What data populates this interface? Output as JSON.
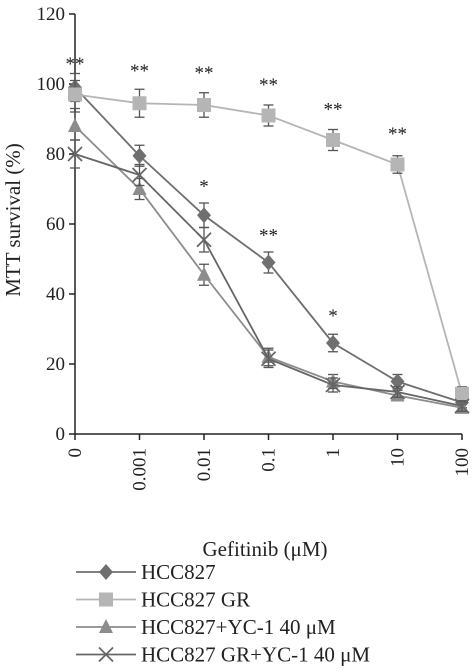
{
  "chart_data": {
    "type": "line",
    "title": "",
    "xlabel": "Gefitinib (μM)",
    "ylabel": "MTT survival (%)",
    "categories": [
      "0",
      "0.001",
      "0.01",
      "0.1",
      "1",
      "10",
      "100"
    ],
    "ylim": [
      0,
      120
    ],
    "yticks": [
      "0",
      "20",
      "40",
      "60",
      "80",
      "100",
      "120"
    ],
    "grid": false,
    "legend_position": "bottom",
    "series": [
      {
        "name": "HCC827",
        "marker": "diamond",
        "color": "#6f6f6f",
        "values": [
          99,
          79.5,
          62.5,
          49,
          26,
          15,
          9
        ],
        "errors": [
          4,
          3,
          3.5,
          3,
          2.5,
          2,
          1.5
        ]
      },
      {
        "name": "HCC827 GR",
        "marker": "square",
        "color": "#b5b5b5",
        "values": [
          97,
          94.5,
          94,
          91,
          84,
          77,
          11.5
        ],
        "errors": [
          4,
          4,
          3.5,
          3,
          3,
          2.5,
          2
        ]
      },
      {
        "name": "HCC827+YC-1 40 μM",
        "marker": "triangle",
        "color": "#8c8c8c",
        "values": [
          88,
          70,
          45.5,
          22,
          15,
          11,
          7.5
        ],
        "errors": [
          4,
          3,
          3,
          2.5,
          2,
          1.5,
          1.5
        ]
      },
      {
        "name": "HCC827 GR+YC-1 40 μM",
        "marker": "cross",
        "color": "#666666",
        "values": [
          80,
          74,
          55.5,
          21.5,
          14,
          12,
          8
        ],
        "errors": [
          4,
          3,
          3.5,
          2.5,
          2,
          1.5,
          1.5
        ]
      }
    ],
    "annotations": [
      {
        "category_index": 0,
        "y": 104,
        "text": "**"
      },
      {
        "category_index": 1,
        "y": 102,
        "text": "**"
      },
      {
        "category_index": 2,
        "y": 101.5,
        "text": "**"
      },
      {
        "category_index": 3,
        "y": 98,
        "text": "**"
      },
      {
        "category_index": 4,
        "y": 91,
        "text": "**"
      },
      {
        "category_index": 5,
        "y": 84,
        "text": "**"
      },
      {
        "category_index": 2,
        "y": 69,
        "text": "*"
      },
      {
        "category_index": 3,
        "y": 55,
        "text": "**"
      },
      {
        "category_index": 4,
        "y": 32,
        "text": "*"
      }
    ]
  }
}
